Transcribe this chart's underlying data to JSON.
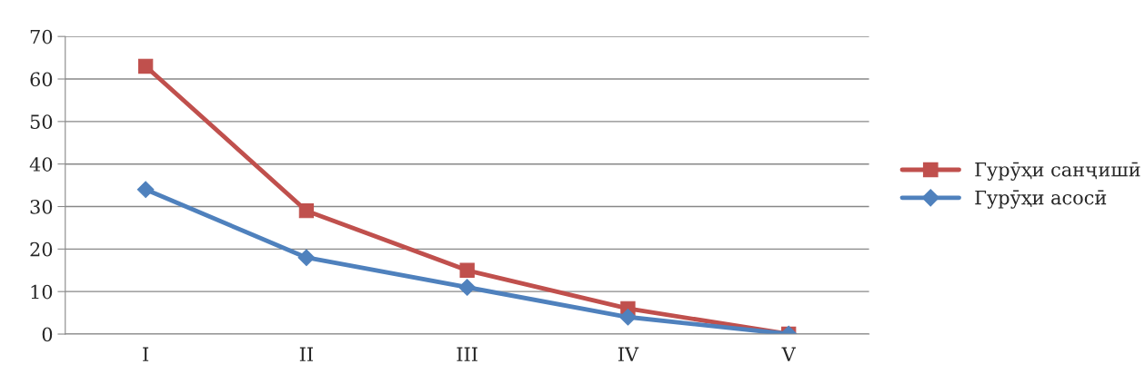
{
  "chart_data": {
    "type": "line",
    "categories": [
      "I",
      "II",
      "III",
      "IV",
      "V"
    ],
    "series": [
      {
        "name": "Гурӯҳи санҷишӣ",
        "color": "#c0504d",
        "marker": "square",
        "values": [
          63,
          29,
          15,
          6,
          0
        ]
      },
      {
        "name": "Гурӯҳи асосӣ",
        "color": "#4f81bd",
        "marker": "diamond",
        "values": [
          34,
          18,
          11,
          4,
          0
        ]
      }
    ],
    "ylim": [
      0,
      70
    ],
    "yticks": [
      0,
      10,
      20,
      30,
      40,
      50,
      60,
      70
    ],
    "grid": "y",
    "legend": "right"
  }
}
